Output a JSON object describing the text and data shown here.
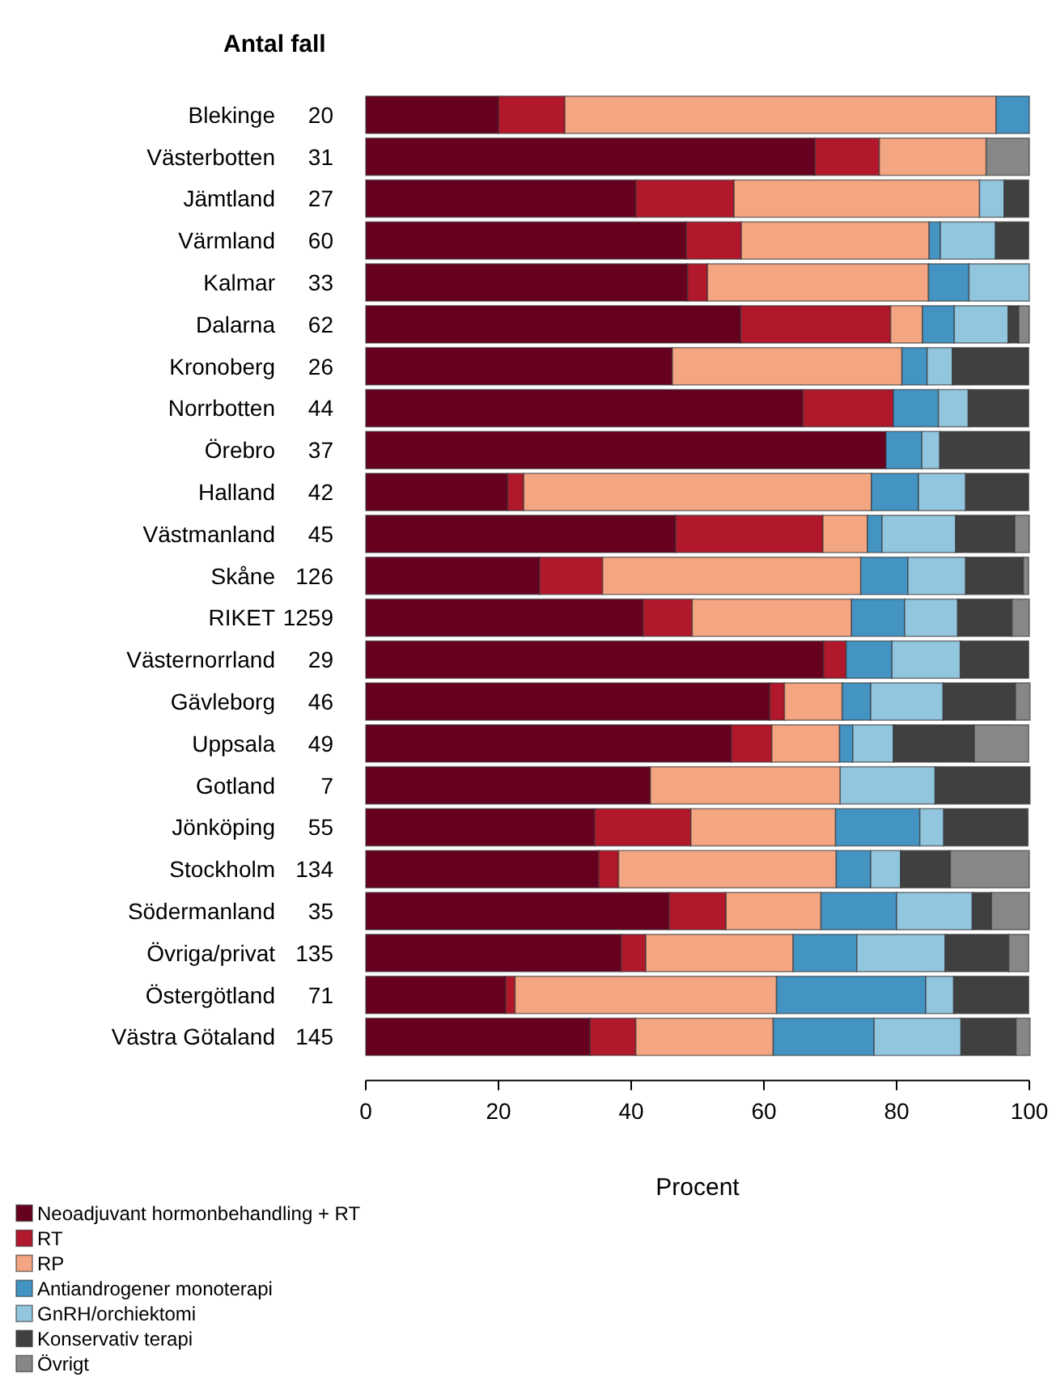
{
  "chart_data": {
    "type": "bar",
    "orientation": "horizontal",
    "stacked": true,
    "xlabel": "Procent",
    "xlim": [
      0,
      100
    ],
    "xticks": [
      0,
      20,
      40,
      60,
      80,
      100
    ],
    "grid": false,
    "legend": "bottom left",
    "categories": [
      "Blekinge",
      "Västerbotten",
      "Jämtland",
      "Värmland",
      "Kalmar",
      "Dalarna",
      "Kronoberg",
      "Norrbotten",
      "Örebro",
      "Halland",
      "Västmanland",
      "Skåne",
      "RIKET",
      "Västernorrland",
      "Gävleborg",
      "Uppsala",
      "Gotland",
      "Jönköping",
      "Stockholm",
      "Södermanland",
      "Övriga/privat",
      "Östergötland",
      "Västra Götaland"
    ],
    "series": [
      {
        "name": "Neoadjuvant hormonbehandling + RT",
        "color": "#67001f",
        "values": [
          20,
          67.7,
          40.7,
          48.3,
          48.5,
          56.5,
          46.2,
          65.9,
          78.4,
          21.4,
          46.7,
          26.2,
          41.8,
          69,
          60.9,
          55.1,
          42.9,
          34.5,
          35.1,
          45.7,
          38.5,
          21.1,
          33.8
        ]
      },
      {
        "name": "RT",
        "color": "#b2182b",
        "values": [
          10,
          9.7,
          14.8,
          8.3,
          3,
          22.6,
          0,
          13.6,
          0,
          2.4,
          22.2,
          9.5,
          7.4,
          3.4,
          2.2,
          6.1,
          0,
          14.5,
          3,
          8.6,
          3.7,
          1.4,
          6.9
        ]
      },
      {
        "name": "RP",
        "color": "#f4a582",
        "values": [
          65,
          16.1,
          37,
          28.3,
          33.3,
          4.8,
          34.6,
          0,
          0,
          52.4,
          6.7,
          38.9,
          24,
          0,
          8.7,
          10.2,
          28.6,
          21.8,
          32.8,
          14.3,
          22.2,
          39.4,
          20.7
        ]
      },
      {
        "name": "Antiandrogener monoterapi",
        "color": "#4393c3",
        "values": [
          5,
          0,
          0,
          1.7,
          6.1,
          4.8,
          3.8,
          6.8,
          5.4,
          7.1,
          2.2,
          7.1,
          8,
          6.9,
          4.3,
          2,
          0,
          12.7,
          5.2,
          11.4,
          9.6,
          22.5,
          15.2
        ]
      },
      {
        "name": "GnRH/orchiektomi",
        "color": "#92c5de",
        "values": [
          0,
          0,
          3.7,
          8.3,
          9.1,
          8.1,
          3.8,
          4.5,
          2.7,
          7.1,
          11.1,
          8.7,
          8,
          10.3,
          10.9,
          6.1,
          14.3,
          3.6,
          4.5,
          11.4,
          13.3,
          4.2,
          13.1
        ]
      },
      {
        "name": "Konservativ terapi",
        "color": "#404040",
        "values": [
          0,
          0,
          3.7,
          5,
          0,
          1.6,
          11.5,
          9.1,
          13.5,
          9.5,
          8.9,
          8.7,
          8.2,
          10.3,
          10.9,
          12.2,
          14.3,
          12.7,
          7.5,
          2.9,
          9.6,
          11.3,
          8.3
        ]
      },
      {
        "name": "Övrigt",
        "color": "#878787",
        "values": [
          0,
          6.5,
          0,
          0,
          0,
          1.6,
          0,
          0,
          0,
          0,
          2.2,
          0.8,
          2.6,
          0,
          2.2,
          8.2,
          0,
          0,
          11.9,
          5.7,
          3,
          0,
          2.1
        ]
      }
    ],
    "annotations": [
      "Antal fall",
      "20",
      "31",
      "27",
      "60",
      "33",
      "62",
      "26",
      "44",
      "37",
      "42",
      "45",
      "126",
      "1259",
      "29",
      "46",
      "49",
      "7",
      "55",
      "134",
      "35",
      "135",
      "71",
      "145"
    ]
  }
}
